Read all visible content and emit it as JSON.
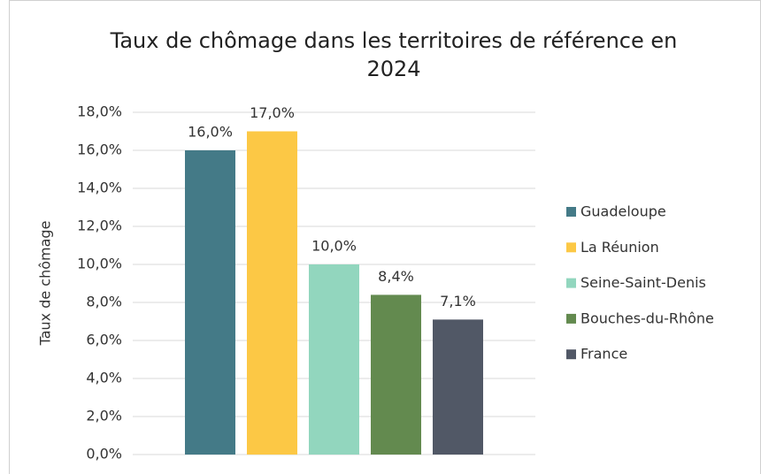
{
  "chart_data": {
    "type": "bar",
    "title": "Taux de chômage dans les territoires de référence en 2024",
    "y_label": "Taux de chômage",
    "categories": [
      null
    ],
    "series": [
      {
        "name": "Guadeloupe",
        "color": "#447a87",
        "values": [
          16.0
        ],
        "value_labels": [
          "16,0%"
        ]
      },
      {
        "name": "La Réunion",
        "color": "#fcc845",
        "values": [
          17.0
        ],
        "value_labels": [
          "17,0%"
        ]
      },
      {
        "name": "Seine-Saint-Denis",
        "color": "#92d6be",
        "values": [
          10.0
        ],
        "value_labels": [
          "10,0%"
        ]
      },
      {
        "name": "Bouches-du-Rhône",
        "color": "#638a4f",
        "values": [
          8.4
        ],
        "value_labels": [
          "8,4%"
        ]
      },
      {
        "name": "France",
        "color": "#515866",
        "values": [
          7.1
        ],
        "value_labels": [
          "7,1%"
        ]
      }
    ],
    "ylim": [
      0,
      18
    ],
    "yticks": [
      {
        "value": 0,
        "label": "0,0%"
      },
      {
        "value": 2,
        "label": "2,0%"
      },
      {
        "value": 4,
        "label": "4,0%"
      },
      {
        "value": 6,
        "label": "6,0%"
      },
      {
        "value": 8,
        "label": "8,0%"
      },
      {
        "value": 10,
        "label": "10,0%"
      },
      {
        "value": 12,
        "label": "12,0%"
      },
      {
        "value": 14,
        "label": "14,0%"
      },
      {
        "value": 16,
        "label": "16,0%"
      },
      {
        "value": 18,
        "label": "18,0%"
      }
    ],
    "grid": true,
    "legend": "right"
  }
}
